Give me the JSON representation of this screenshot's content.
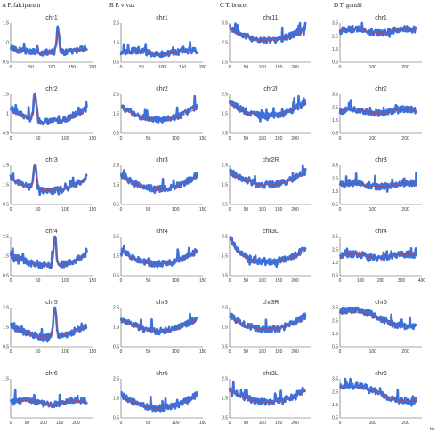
{
  "colors": {
    "data": "#3f6fd8",
    "trend": "#d23a3a"
  },
  "columns": [
    {
      "label": "A  P. falciparum"
    },
    {
      "label": "B  P. vivax"
    },
    {
      "label": "C  T. brucei"
    },
    {
      "label": "D  T. gondii"
    }
  ],
  "footer": {
    "label": "kb"
  },
  "chart_data": [
    {
      "type": "line",
      "title": "chr1",
      "xlim": [
        0,
        200
      ],
      "xticks": [
        0,
        50,
        100,
        150,
        200
      ],
      "ylim": [
        0.5,
        1.5
      ],
      "yticks": [
        "1.5",
        "1.0",
        "0.5"
      ],
      "shape": "flat_spike_mid",
      "n": 160,
      "baseline": 0.75,
      "series": [
        {
          "name": "data"
        },
        {
          "name": "trend"
        }
      ]
    },
    {
      "type": "line",
      "title": "chr1",
      "xlim": [
        0,
        200
      ],
      "xticks": [
        0,
        50,
        100,
        150,
        200
      ],
      "ylim": [
        0.5,
        2.5
      ],
      "yticks": [
        "2.5",
        "1.5",
        "0.5"
      ],
      "shape": "flat",
      "n": 140,
      "baseline": 1.0,
      "series": [
        {
          "name": "data"
        },
        {
          "name": "trend"
        }
      ]
    },
    {
      "type": "line",
      "title": "chr11",
      "xlim": [
        0,
        250
      ],
      "xticks": [
        0,
        50,
        100,
        150,
        200
      ],
      "ylim": [
        1.5,
        3.5
      ],
      "yticks": [
        "3.5",
        "2.5",
        "1.5"
      ],
      "shape": "u",
      "n": 160,
      "baseline": 2.6,
      "series": [
        {
          "name": "data"
        },
        {
          "name": "trend"
        }
      ]
    },
    {
      "type": "line",
      "title": "chr1",
      "xlim": [
        0,
        250
      ],
      "xticks": [
        0,
        100,
        200
      ],
      "ylim": [
        0.5,
        3.5
      ],
      "yticks": [
        "3.5",
        "2.5",
        "1.5",
        "0.5"
      ],
      "shape": "flat",
      "n": 170,
      "baseline": 2.9,
      "series": [
        {
          "name": "data"
        },
        {
          "name": "trend"
        }
      ]
    },
    {
      "type": "line",
      "title": "chr2",
      "xlim": [
        0,
        150
      ],
      "xticks": [
        0,
        50,
        100,
        150
      ],
      "ylim": [
        0.5,
        1.5
      ],
      "yticks": [
        "1.5",
        "1",
        "0.5"
      ],
      "shape": "u_spike_left",
      "n": 150,
      "baseline": 0.8,
      "series": [
        {
          "name": "data"
        },
        {
          "name": "trend"
        }
      ]
    },
    {
      "type": "line",
      "title": "chr2",
      "xlim": [
        0,
        150
      ],
      "xticks": [
        0,
        50,
        100,
        150
      ],
      "ylim": [
        0.5,
        2.5
      ],
      "yticks": [
        "2.5",
        "1.5",
        "0.5"
      ],
      "shape": "u",
      "n": 150,
      "baseline": 1.2,
      "series": [
        {
          "name": "data"
        },
        {
          "name": "trend"
        }
      ]
    },
    {
      "type": "line",
      "title": "chr2l",
      "xlim": [
        0,
        250
      ],
      "xticks": [
        0,
        50,
        100,
        150,
        200
      ],
      "ylim": [
        0.5,
        2.5
      ],
      "yticks": [
        "2.5",
        "1.5",
        "0.5"
      ],
      "shape": "u",
      "n": 160,
      "baseline": 1.4,
      "series": [
        {
          "name": "data"
        },
        {
          "name": "trend"
        }
      ]
    },
    {
      "type": "line",
      "title": "chr2",
      "xlim": [
        0,
        250
      ],
      "xticks": [
        0,
        100,
        200
      ],
      "ylim": [
        0.5,
        3.5
      ],
      "yticks": [
        "3.5",
        "2.5",
        "1.5",
        "0.5"
      ],
      "shape": "flat",
      "n": 170,
      "baseline": 2.2,
      "series": [
        {
          "name": "data"
        },
        {
          "name": "trend"
        }
      ]
    },
    {
      "type": "line",
      "title": "chr3",
      "xlim": [
        0,
        150
      ],
      "xticks": [
        0,
        50,
        100,
        150
      ],
      "ylim": [
        0.5,
        2.5
      ],
      "yticks": [
        "2.5",
        "1.5",
        "0.5"
      ],
      "shape": "u_spike_left",
      "n": 150,
      "baseline": 1.2,
      "series": [
        {
          "name": "data"
        },
        {
          "name": "trend"
        }
      ]
    },
    {
      "type": "line",
      "title": "chr3",
      "xlim": [
        0,
        150
      ],
      "xticks": [
        0,
        50,
        100,
        150
      ],
      "ylim": [
        0.5,
        2.5
      ],
      "yticks": [
        "2.5",
        "1.5",
        "0.5"
      ],
      "shape": "u",
      "n": 150,
      "baseline": 1.3,
      "series": [
        {
          "name": "data"
        },
        {
          "name": "trend"
        }
      ]
    },
    {
      "type": "line",
      "title": "chr2R",
      "xlim": [
        0,
        250
      ],
      "xticks": [
        0,
        50,
        100,
        150,
        200
      ],
      "ylim": [
        0.5,
        2.5
      ],
      "yticks": [
        "2.5",
        "1.5",
        "0.5"
      ],
      "shape": "u",
      "n": 160,
      "baseline": 1.5,
      "series": [
        {
          "name": "data"
        },
        {
          "name": "trend"
        }
      ]
    },
    {
      "type": "line",
      "title": "chr3",
      "xlim": [
        0,
        250
      ],
      "xticks": [
        0,
        100,
        200
      ],
      "ylim": [
        0.5,
        3.5
      ],
      "yticks": [
        "3.5",
        "2.5",
        "1.5",
        "0.5"
      ],
      "shape": "flat",
      "n": 170,
      "baseline": 2.0,
      "series": [
        {
          "name": "data"
        },
        {
          "name": "trend"
        }
      ]
    },
    {
      "type": "line",
      "title": "chr4",
      "xlim": [
        0,
        150
      ],
      "xticks": [
        0,
        50,
        100,
        150
      ],
      "ylim": [
        0.5,
        2.5
      ],
      "yticks": [
        "2.5",
        "1.5",
        "0.5"
      ],
      "shape": "u_spike_mid",
      "n": 150,
      "baseline": 1.0,
      "series": [
        {
          "name": "data"
        },
        {
          "name": "trend"
        }
      ]
    },
    {
      "type": "line",
      "title": "chr4",
      "xlim": [
        0,
        150
      ],
      "xticks": [
        0,
        50,
        100,
        150
      ],
      "ylim": [
        0.5,
        2.5
      ],
      "yticks": [
        "2.5",
        "1.5",
        "0.5"
      ],
      "shape": "u",
      "n": 150,
      "baseline": 1.1,
      "series": [
        {
          "name": "data"
        },
        {
          "name": "trend"
        }
      ]
    },
    {
      "type": "line",
      "title": "chr3L",
      "xlim": [
        0,
        250
      ],
      "xticks": [
        0,
        50,
        100,
        150,
        200
      ],
      "ylim": [
        0.5,
        2.5
      ],
      "yticks": [
        "2.5",
        "1.5",
        "0.5"
      ],
      "shape": "u_start_high",
      "n": 160,
      "baseline": 1.2,
      "series": [
        {
          "name": "data"
        },
        {
          "name": "trend"
        }
      ]
    },
    {
      "type": "line",
      "title": "chr4",
      "xlim": [
        0,
        400
      ],
      "xticks": [
        0,
        100,
        200,
        300,
        400
      ],
      "ylim": [
        0.5,
        3.5
      ],
      "yticks": [
        "3.5",
        "2.5",
        "1.5",
        "0.5"
      ],
      "shape": "flat",
      "n": 170,
      "baseline": 2.0,
      "series": [
        {
          "name": "data"
        },
        {
          "name": "trend"
        }
      ]
    },
    {
      "type": "line",
      "title": "chr5",
      "xlim": [
        0,
        150
      ],
      "xticks": [
        0,
        50,
        100,
        150
      ],
      "ylim": [
        0.5,
        2.5
      ],
      "yticks": [
        "2.5",
        "1.5",
        "0.5"
      ],
      "shape": "u_spike_mid",
      "n": 150,
      "baseline": 1.0,
      "series": [
        {
          "name": "data"
        },
        {
          "name": "trend"
        }
      ]
    },
    {
      "type": "line",
      "title": "chr5",
      "xlim": [
        0,
        150
      ],
      "xticks": [
        0,
        50,
        100,
        150
      ],
      "ylim": [
        0.5,
        2.5
      ],
      "yticks": [
        "2.5",
        "1.5",
        "0.5"
      ],
      "shape": "u",
      "n": 150,
      "baseline": 1.3,
      "series": [
        {
          "name": "data"
        },
        {
          "name": "trend"
        }
      ]
    },
    {
      "type": "line",
      "title": "chr3R",
      "xlim": [
        0,
        250
      ],
      "xticks": [
        0,
        50,
        100,
        150,
        200
      ],
      "ylim": [
        0.5,
        2.5
      ],
      "yticks": [
        "2.5",
        "1.5",
        "0.5"
      ],
      "shape": "u",
      "n": 160,
      "baseline": 1.4,
      "series": [
        {
          "name": "data"
        },
        {
          "name": "trend"
        }
      ]
    },
    {
      "type": "line",
      "title": "chr5",
      "xlim": [
        0,
        250
      ],
      "xticks": [
        0,
        100,
        200
      ],
      "ylim": [
        0.5,
        3.5
      ],
      "yticks": [
        "3.5",
        "2.5",
        "1.5",
        "0.5"
      ],
      "shape": "declining",
      "n": 170,
      "baseline": 2.2,
      "series": [
        {
          "name": "data"
        },
        {
          "name": "trend"
        }
      ]
    },
    {
      "type": "line",
      "title": "chr6",
      "xlim": [
        0,
        250
      ],
      "xticks": [
        0,
        50,
        100,
        150,
        200
      ],
      "ylim": [
        0.5,
        1.5
      ],
      "yticks": [
        "1.5"
      ],
      "shape": "flat",
      "n": 150,
      "baseline": 0.9,
      "series": [
        {
          "name": "data"
        },
        {
          "name": "trend"
        }
      ]
    },
    {
      "type": "line",
      "title": "chr6",
      "xlim": [
        0,
        150
      ],
      "xticks": [
        0,
        50,
        100,
        150
      ],
      "ylim": [
        0.5,
        2.5
      ],
      "yticks": [
        "2.5",
        "1.5",
        "0.5"
      ],
      "shape": "u",
      "n": 150,
      "baseline": 1.0,
      "series": [
        {
          "name": "data"
        },
        {
          "name": "trend"
        }
      ]
    },
    {
      "type": "line",
      "title": "chr3L",
      "xlim": [
        0,
        250
      ],
      "xticks": [
        0,
        50,
        100,
        150,
        200
      ],
      "ylim": [
        0.5,
        2.5
      ],
      "yticks": [
        "2.5",
        "1.5",
        "0.5"
      ],
      "shape": "u",
      "n": 160,
      "baseline": 1.3,
      "series": [
        {
          "name": "data"
        },
        {
          "name": "trend"
        }
      ]
    },
    {
      "type": "line",
      "title": "chr6",
      "xlim": [
        0,
        250
      ],
      "xticks": [
        0,
        100,
        200
      ],
      "ylim": [
        0.5,
        3.5
      ],
      "yticks": [
        "3.5",
        "2.5",
        "1.5",
        "0.5"
      ],
      "shape": "declining",
      "n": 170,
      "baseline": 1.9,
      "series": [
        {
          "name": "data"
        },
        {
          "name": "trend"
        }
      ]
    }
  ]
}
